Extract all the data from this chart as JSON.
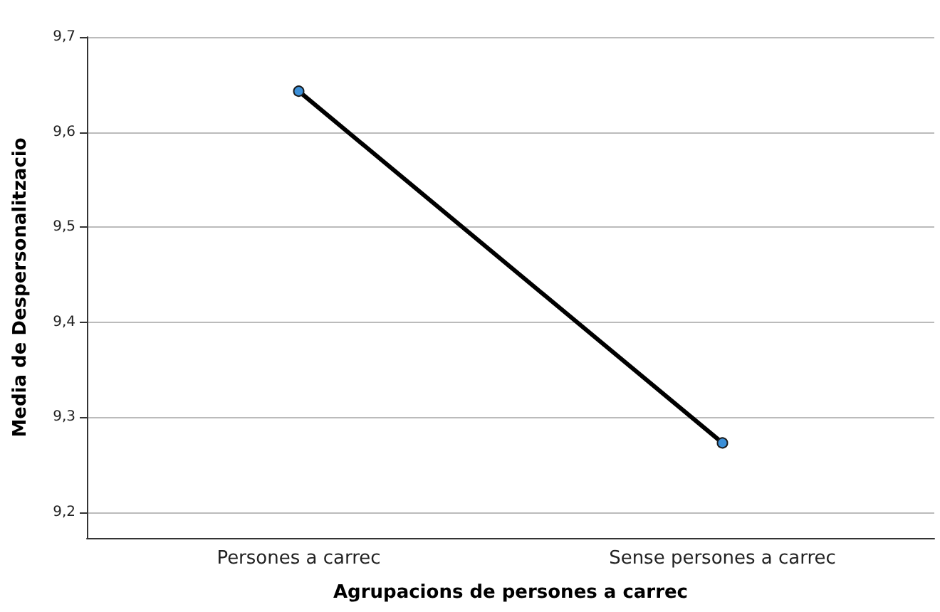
{
  "chart_data": {
    "type": "line",
    "xlabel": "Agrupacions de persones a carrec",
    "ylabel": "Media de Despersonalitzacio",
    "categories": [
      "Persones a carrec",
      "Sense persones a carrec"
    ],
    "series": [
      {
        "color": "#000000",
        "colors": [
          "#3b8fd8",
          "#3b8fd8"
        ],
        "values": [
          9.643,
          9.273
        ]
      }
    ],
    "ylim": [
      9.173,
      9.7
    ],
    "yticks": [
      {
        "value": 9.2,
        "label": "9,2"
      },
      {
        "value": 9.3,
        "label": "9,3"
      },
      {
        "value": 9.4,
        "label": "9,4"
      },
      {
        "value": 9.5,
        "label": "9,5"
      },
      {
        "value": 9.6,
        "label": "9,6"
      },
      {
        "value": 9.7,
        "label": "9,7"
      }
    ],
    "grid": "y",
    "marker": "circle",
    "line_style": "solid"
  }
}
